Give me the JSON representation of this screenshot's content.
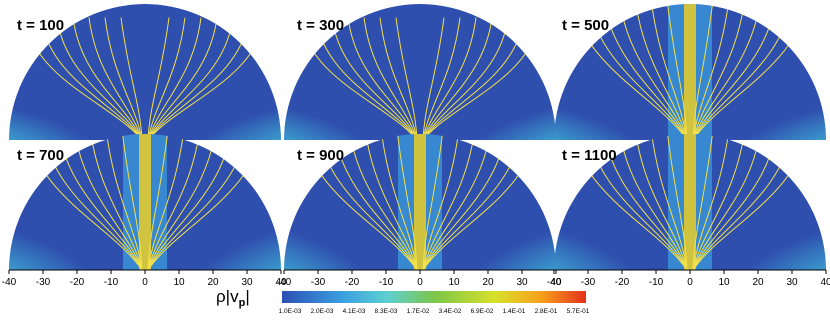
{
  "panels": [
    {
      "label": "t = 100"
    },
    {
      "label": "t = 300"
    },
    {
      "label": "t = 500"
    },
    {
      "label": "t = 700"
    },
    {
      "label": "t = 900"
    },
    {
      "label": "t = 1100"
    }
  ],
  "x_axis": {
    "ticks": [
      "-40",
      "-30",
      "-20",
      "-10",
      "0",
      "10",
      "20",
      "30",
      "40"
    ]
  },
  "colorbar": {
    "label": {
      "text": "ρ|v",
      "subscript": "p",
      "suffix": "|"
    },
    "ticks": [
      "1.0E-03",
      "2.0E-03",
      "4.1E-03",
      "8.3E-03",
      "1.7E-02",
      "3.4E-02",
      "6.9E-02",
      "1.4E-01",
      "2.8E-01",
      "5.7E-01"
    ]
  }
}
